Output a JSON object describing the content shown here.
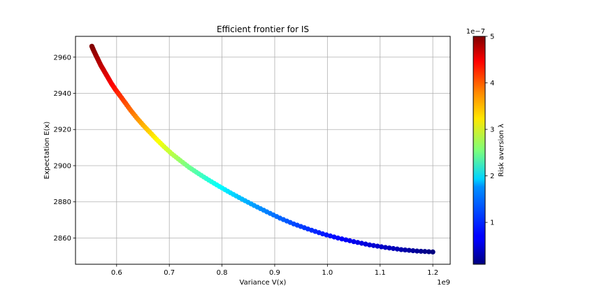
{
  "chart_data": {
    "type": "scatter",
    "title": "Efficient frontier for IS",
    "xlabel": "Variance V(x)",
    "ylabel": "Expectation E(x)",
    "x_offset_label": "1e9",
    "xlim": [
      0.522,
      1.233
    ],
    "ylim": [
      2845.5,
      2971.5
    ],
    "x_ticks": [
      0.6,
      0.7,
      0.8,
      0.9,
      1.0,
      1.1,
      1.2
    ],
    "x_tick_labels": [
      "0.6",
      "0.7",
      "0.8",
      "0.9",
      "1.0",
      "1.1",
      "1.2"
    ],
    "y_ticks": [
      2860,
      2880,
      2900,
      2920,
      2940,
      2960
    ],
    "y_tick_labels": [
      "2860",
      "2880",
      "2900",
      "2920",
      "2940",
      "2960"
    ],
    "grid": true,
    "colormap": "jet",
    "colorbar": {
      "label": "Risk aversion λ",
      "offset_label": "1e−7",
      "range": [
        0.1,
        5.0
      ],
      "ticks": [
        1,
        2,
        3,
        4,
        5
      ],
      "tick_labels": [
        "1",
        "2",
        "3",
        "4",
        "5"
      ]
    },
    "series": [
      {
        "points": [
          {
            "x": 0.553,
            "y": 2966.0,
            "c": 5.0
          },
          {
            "x": 0.556,
            "y": 2964.0,
            "c": 4.95
          },
          {
            "x": 0.56,
            "y": 2961.5,
            "c": 4.88
          },
          {
            "x": 0.565,
            "y": 2958.5,
            "c": 4.8
          },
          {
            "x": 0.57,
            "y": 2955.5,
            "c": 4.72
          },
          {
            "x": 0.576,
            "y": 2952.5,
            "c": 4.62
          },
          {
            "x": 0.583,
            "y": 2949.0,
            "c": 4.52
          },
          {
            "x": 0.59,
            "y": 2945.5,
            "c": 4.42
          },
          {
            "x": 0.598,
            "y": 2942.0,
            "c": 4.3
          },
          {
            "x": 0.607,
            "y": 2938.5,
            "c": 4.17
          },
          {
            "x": 0.617,
            "y": 2934.5,
            "c": 4.03
          },
          {
            "x": 0.627,
            "y": 2930.5,
            "c": 3.88
          },
          {
            "x": 0.638,
            "y": 2926.5,
            "c": 3.72
          },
          {
            "x": 0.65,
            "y": 2922.5,
            "c": 3.55
          },
          {
            "x": 0.663,
            "y": 2918.5,
            "c": 3.38
          },
          {
            "x": 0.676,
            "y": 2914.5,
            "c": 3.2
          },
          {
            "x": 0.69,
            "y": 2910.5,
            "c": 3.02
          },
          {
            "x": 0.705,
            "y": 2906.5,
            "c": 2.84
          },
          {
            "x": 0.721,
            "y": 2902.8,
            "c": 2.66
          },
          {
            "x": 0.738,
            "y": 2899.0,
            "c": 2.48
          },
          {
            "x": 0.756,
            "y": 2895.5,
            "c": 2.3
          },
          {
            "x": 0.775,
            "y": 2892.0,
            "c": 2.12
          },
          {
            "x": 0.795,
            "y": 2888.5,
            "c": 1.95
          },
          {
            "x": 0.816,
            "y": 2885.0,
            "c": 1.78
          },
          {
            "x": 0.838,
            "y": 2881.5,
            "c": 1.62
          },
          {
            "x": 0.861,
            "y": 2878.0,
            "c": 1.47
          },
          {
            "x": 0.885,
            "y": 2874.5,
            "c": 1.33
          },
          {
            "x": 0.91,
            "y": 2871.0,
            "c": 1.2
          },
          {
            "x": 0.936,
            "y": 2867.8,
            "c": 1.07
          },
          {
            "x": 0.963,
            "y": 2865.0,
            "c": 0.95
          },
          {
            "x": 0.991,
            "y": 2862.3,
            "c": 0.84
          },
          {
            "x": 1.02,
            "y": 2860.0,
            "c": 0.73
          },
          {
            "x": 1.05,
            "y": 2858.0,
            "c": 0.63
          },
          {
            "x": 1.08,
            "y": 2856.2,
            "c": 0.53
          },
          {
            "x": 1.11,
            "y": 2854.8,
            "c": 0.43
          },
          {
            "x": 1.14,
            "y": 2853.6,
            "c": 0.33
          },
          {
            "x": 1.17,
            "y": 2852.8,
            "c": 0.22
          },
          {
            "x": 1.2,
            "y": 2852.3,
            "c": 0.1
          }
        ]
      }
    ]
  }
}
